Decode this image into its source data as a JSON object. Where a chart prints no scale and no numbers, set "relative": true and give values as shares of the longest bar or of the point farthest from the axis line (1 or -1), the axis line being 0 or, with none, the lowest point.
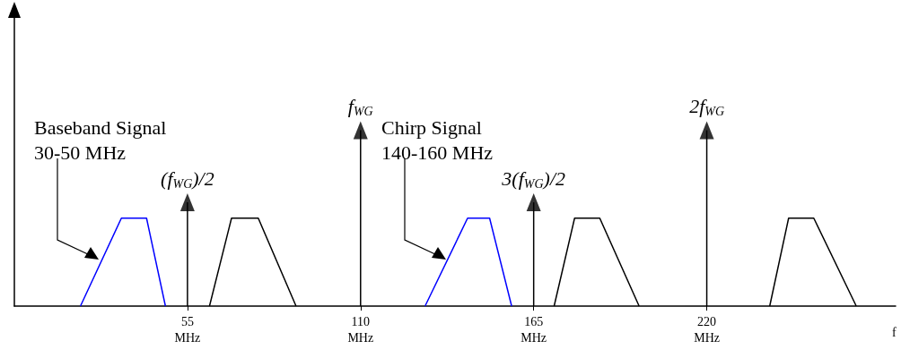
{
  "chart_data": {
    "type": "line",
    "relative": true,
    "xlabel": "f",
    "xlim": [
      0,
      280
    ],
    "xticks": [
      {
        "value": 55,
        "label": "55\nMHz"
      },
      {
        "value": 110,
        "label": "110\nMHz"
      },
      {
        "value": 165,
        "label": "165\nMHz"
      },
      {
        "value": 220,
        "label": "220\nMHz"
      }
    ],
    "series": [
      {
        "color": "#0000ff",
        "x": [
          21,
          34,
          42,
          48
        ],
        "values": [
          0,
          0.5,
          0.5,
          0
        ]
      },
      {
        "color": "#000000",
        "x": [
          62,
          69,
          77.5,
          89.5
        ],
        "values": [
          0,
          0.5,
          0.5,
          0
        ]
      },
      {
        "color": "#0000ff",
        "x": [
          130.5,
          144,
          151,
          158
        ],
        "values": [
          0,
          0.5,
          0.5,
          0
        ]
      },
      {
        "color": "#000000",
        "x": [
          171.5,
          178,
          186,
          198.5
        ],
        "values": [
          0,
          0.5,
          0.5,
          0
        ]
      },
      {
        "color": "#000000",
        "x": [
          240,
          246,
          254,
          267.5
        ],
        "values": [
          0,
          0.5,
          0.5,
          0
        ]
      },
      {
        "type": "lollipop",
        "marker": "triangle",
        "color": "#000000",
        "x": [
          55,
          110,
          165,
          220
        ],
        "values": [
          0.59,
          1,
          0.59,
          1
        ]
      }
    ],
    "annotations": [
      "Baseband Signal\n30-50 MHz",
      "Chirp Signal\n140-160 MHz",
      {
        "text": "(f$_{WG}$)/2",
        "x": 55,
        "y": 0.59
      },
      {
        "text": "f$_{WG}$",
        "x": 110,
        "y": 1
      },
      {
        "text": "3(f$_{WG}$)/2",
        "x": 165,
        "y": 0.59
      },
      {
        "text": "2f$_{WG}$",
        "x": 220,
        "y": 1
      }
    ]
  }
}
